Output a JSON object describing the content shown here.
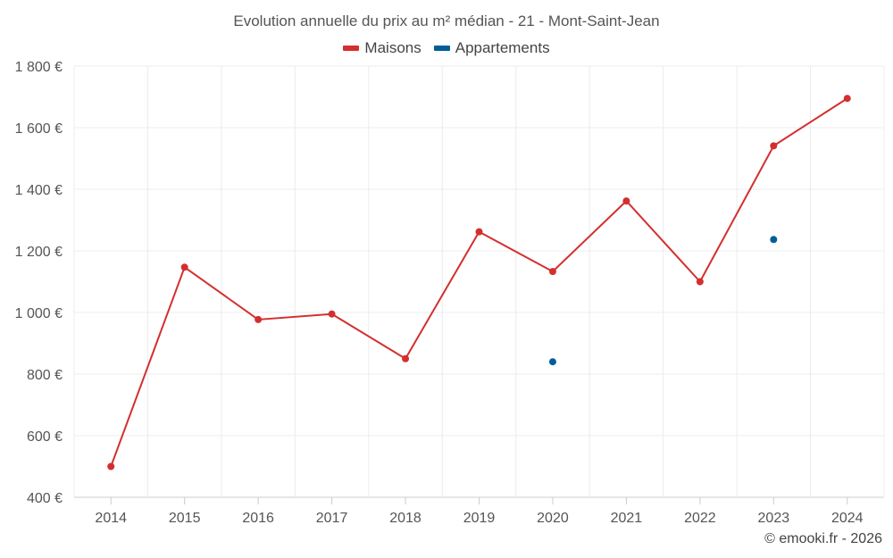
{
  "chart_data": {
    "type": "line",
    "title": "Evolution annuelle du prix au m² médian - 21 - Mont-Saint-Jean",
    "categories": [
      "2014",
      "2015",
      "2016",
      "2017",
      "2018",
      "2019",
      "2020",
      "2021",
      "2022",
      "2023",
      "2024"
    ],
    "series": [
      {
        "name": "Maisons",
        "color": "#d32f2f",
        "values": [
          500,
          1147,
          977,
          995,
          850,
          1262,
          1133,
          1362,
          1100,
          1541,
          1695
        ]
      },
      {
        "name": "Appartements",
        "color": "#005f99",
        "values": [
          null,
          null,
          null,
          null,
          null,
          null,
          840,
          null,
          null,
          1237,
          null
        ]
      }
    ],
    "yticks": [
      "400 €",
      "600 €",
      "800 €",
      "1 000 €",
      "1 200 €",
      "1 400 €",
      "1 600 €",
      "1 800 €"
    ],
    "ylim": [
      400,
      1800
    ],
    "ytick_values": [
      400,
      600,
      800,
      1000,
      1200,
      1400,
      1600,
      1800
    ],
    "xlabel": "",
    "ylabel": "",
    "grid": true
  },
  "footer": "© emooki.fr - 2026"
}
